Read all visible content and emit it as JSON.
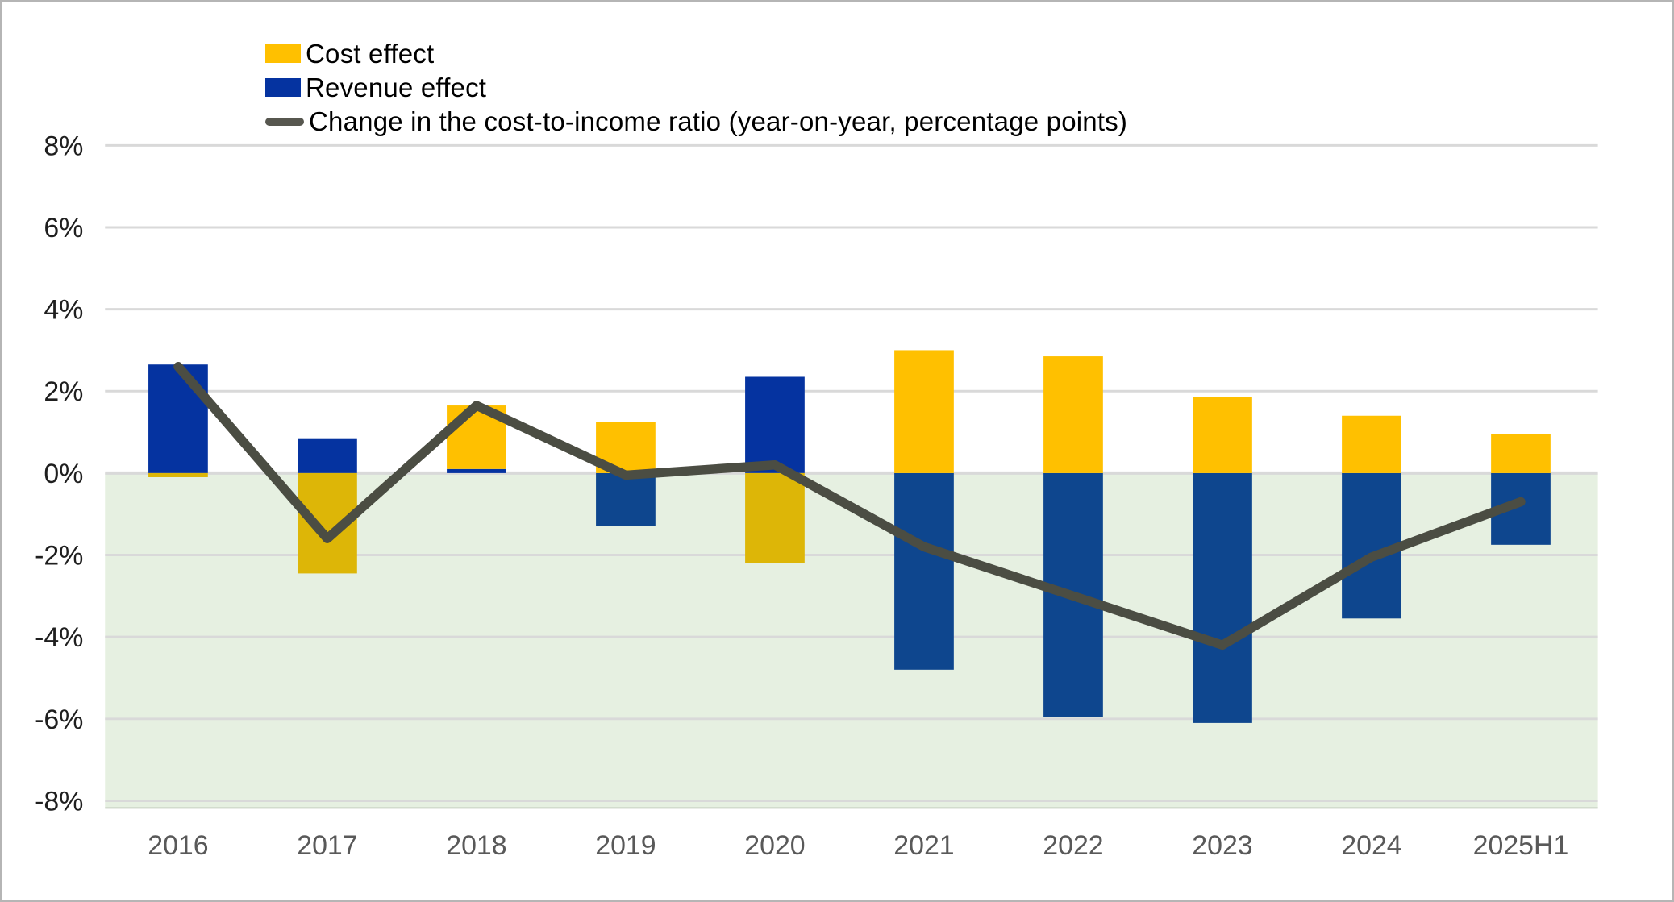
{
  "chart_data": {
    "type": "bar+line",
    "title": "",
    "categories": [
      "2016",
      "2017",
      "2018",
      "2019",
      "2020",
      "2021",
      "2022",
      "2023",
      "2024",
      "2025H1"
    ],
    "series": [
      {
        "name": "Cost effect",
        "type": "bar",
        "values": [
          -0.1,
          -2.45,
          1.55,
          1.25,
          -2.2,
          3.0,
          2.85,
          1.85,
          1.4,
          0.95
        ],
        "color_positive": "#FFC000",
        "color_negative": "#DDB607"
      },
      {
        "name": "Revenue effect",
        "type": "bar",
        "values": [
          2.65,
          0.85,
          0.1,
          -1.3,
          2.35,
          -4.8,
          -5.95,
          -6.1,
          -3.55,
          -1.75
        ],
        "color_positive": "#0533A0",
        "color_negative": "#0E468E"
      },
      {
        "name": "Change in the cost-to-income ratio (year-on-year, percentage points)",
        "type": "line",
        "values": [
          2.6,
          -1.6,
          1.65,
          -0.05,
          0.2,
          -1.8,
          -3.0,
          -4.2,
          -2.05,
          -0.7
        ],
        "color": "#4B4D43",
        "legend_swatch_color": "#57574F"
      }
    ],
    "stacking": "revenue bottom, cost on top; negatives stacked below zero",
    "y_axis": {
      "min": -8,
      "max": 8,
      "step": 2,
      "tick_labels": [
        "8%",
        "6%",
        "4%",
        "2%",
        "0%",
        "-2%",
        "-4%",
        "-6%",
        "-8%"
      ],
      "tick_color": "#1F1F1F"
    },
    "x_axis": {
      "tick_color": "#595959"
    },
    "plot": {
      "grid": "horizontal",
      "gridline_color": "#D9D9D9",
      "negative_region_fill": "#E6F0E1",
      "background": "#FFFFFF"
    },
    "legend_position": "top-left"
  }
}
